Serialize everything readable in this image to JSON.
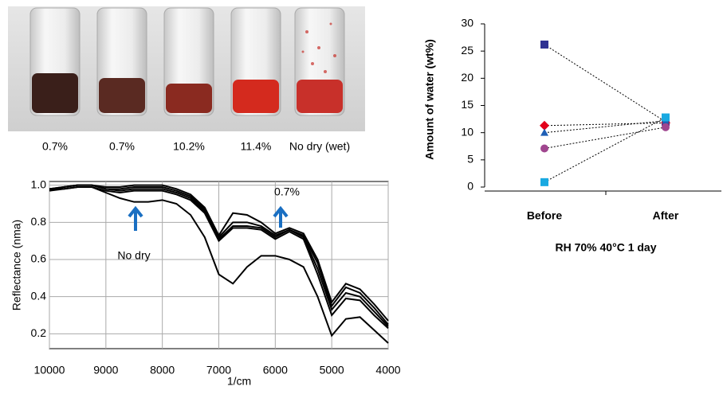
{
  "photo": {
    "labels": [
      "0.7%",
      "0.7%",
      "10.2%",
      "11.4%",
      "No dry (wet)"
    ]
  },
  "chart_data": [
    {
      "type": "line",
      "xlabel": "1/cm",
      "ylabel": "Reflectance (nma)",
      "annotations": [
        "No dry",
        "0.7%"
      ],
      "x": [
        10000,
        9750,
        9500,
        9250,
        9000,
        8750,
        8500,
        8250,
        8000,
        7750,
        7500,
        7250,
        7000,
        6750,
        6500,
        6250,
        6000,
        5750,
        5500,
        5250,
        5000,
        4750,
        4500,
        4250,
        4000
      ],
      "series": [
        {
          "color": "#000000",
          "values": [
            0.98,
            0.98,
            0.99,
            0.99,
            0.96,
            0.93,
            0.91,
            0.91,
            0.92,
            0.9,
            0.84,
            0.72,
            0.52,
            0.47,
            0.56,
            0.62,
            0.62,
            0.6,
            0.56,
            0.4,
            0.19,
            0.28,
            0.29,
            0.22,
            0.15
          ]
        },
        {
          "color": "#000000",
          "values": [
            0.98,
            0.99,
            1.0,
            1.0,
            0.99,
            0.99,
            1.0,
            1.0,
            1.0,
            0.98,
            0.95,
            0.88,
            0.73,
            0.85,
            0.84,
            0.8,
            0.74,
            0.77,
            0.74,
            0.6,
            0.37,
            0.47,
            0.44,
            0.36,
            0.27
          ]
        },
        {
          "color": "#000000",
          "values": [
            0.98,
            0.99,
            1.0,
            1.0,
            0.98,
            0.98,
            0.99,
            0.99,
            0.99,
            0.97,
            0.94,
            0.87,
            0.72,
            0.8,
            0.8,
            0.78,
            0.73,
            0.76,
            0.73,
            0.58,
            0.35,
            0.45,
            0.42,
            0.34,
            0.25
          ]
        },
        {
          "color": "#000000",
          "values": [
            0.97,
            0.99,
            1.0,
            1.0,
            0.98,
            0.97,
            0.98,
            0.98,
            0.98,
            0.96,
            0.93,
            0.86,
            0.71,
            0.78,
            0.78,
            0.77,
            0.72,
            0.76,
            0.72,
            0.55,
            0.33,
            0.42,
            0.4,
            0.32,
            0.24
          ]
        },
        {
          "color": "#000000",
          "values": [
            0.97,
            0.98,
            0.99,
            0.99,
            0.97,
            0.96,
            0.97,
            0.97,
            0.97,
            0.95,
            0.92,
            0.85,
            0.7,
            0.77,
            0.77,
            0.76,
            0.71,
            0.75,
            0.71,
            0.52,
            0.3,
            0.39,
            0.38,
            0.3,
            0.23
          ]
        }
      ],
      "xlim": [
        10000,
        4000
      ],
      "xticks": [
        10000,
        9000,
        8000,
        7000,
        6000,
        5000,
        4000
      ],
      "ylim": [
        0.12,
        1.02
      ],
      "yticks": [
        {
          "value": 1,
          "label": "1.0"
        },
        0.8,
        0.6,
        0.4,
        0.2
      ],
      "grid": true
    },
    {
      "type": "dot-line",
      "ylabel": "Amount of water (wt%)",
      "xlabel": "RH 70% 40°C 1 day",
      "categories": [
        "Before",
        "After"
      ],
      "series": [
        {
          "color": "#2e3192",
          "marker": "square",
          "values": [
            26.2,
            12.0
          ]
        },
        {
          "color": "#e3001b",
          "marker": "diamond",
          "values": [
            11.3,
            11.8
          ]
        },
        {
          "color": "#1f5fb5",
          "marker": "triangle",
          "values": [
            10.0,
            12.2
          ]
        },
        {
          "color": "#a0468f",
          "marker": "circle",
          "values": [
            7.1,
            11.0
          ]
        },
        {
          "color": "#19a9e1",
          "marker": "square",
          "values": [
            0.9,
            12.8
          ]
        }
      ],
      "ylim": [
        0,
        30
      ],
      "yticks": [
        0,
        5,
        10,
        15,
        20,
        25,
        30
      ]
    }
  ]
}
